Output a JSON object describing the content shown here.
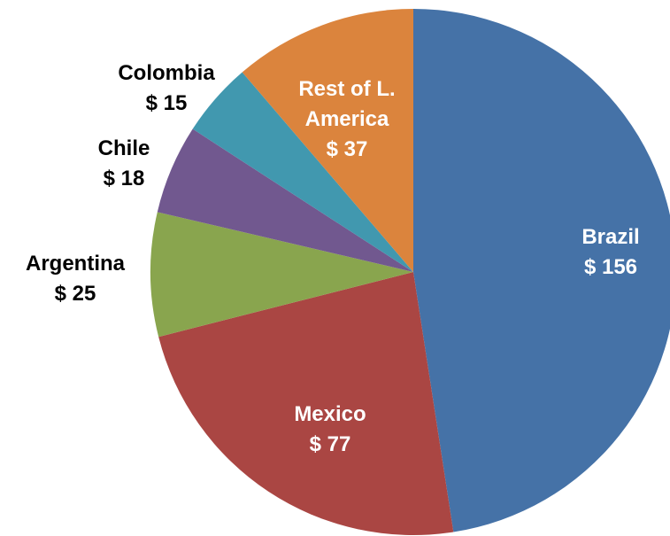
{
  "chart_data": {
    "type": "pie",
    "categories": [
      "Brazil",
      "Mexico",
      "Argentina",
      "Chile",
      "Colombia",
      "Rest of L. America"
    ],
    "values": [
      156,
      77,
      25,
      18,
      15,
      37
    ],
    "value_labels": [
      "$ 156",
      "$ 77",
      "$ 25",
      "$ 18",
      "$ 15",
      "$ 37"
    ],
    "colors": [
      "#4572a7",
      "#aa4643",
      "#89a54e",
      "#71588f",
      "#4198af",
      "#db843d"
    ]
  }
}
